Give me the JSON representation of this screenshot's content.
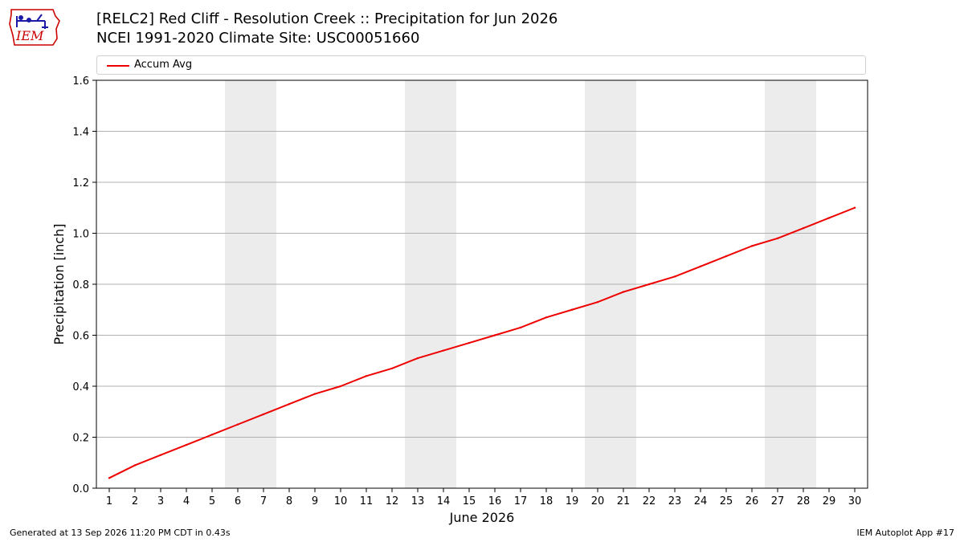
{
  "header": {
    "title_line1": "[RELC2] Red Cliff - Resolution Creek :: Precipitation for Jun 2026",
    "title_line2": "NCEI 1991-2020 Climate Site: USC00051660"
  },
  "logo": {
    "text": "IEM",
    "brand_color": "#cc0000",
    "icon_color": "#1a1aa6"
  },
  "footer": {
    "left": "Generated at 13 Sep 2026 11:20 PM CDT in 0.43s",
    "right": "IEM Autoplot App #17"
  },
  "chart_data": {
    "type": "line",
    "title": "[RELC2] Red Cliff - Resolution Creek :: Precipitation for Jun 2026",
    "subtitle": "NCEI 1991-2020 Climate Site: USC00051660",
    "xlabel": "June 2026",
    "ylabel": "Precipitation [inch]",
    "xlim": [
      0.5,
      30.5
    ],
    "ylim": [
      0,
      1.6
    ],
    "x": [
      1,
      2,
      3,
      4,
      5,
      6,
      7,
      8,
      9,
      10,
      11,
      12,
      13,
      14,
      15,
      16,
      17,
      18,
      19,
      20,
      21,
      22,
      23,
      24,
      25,
      26,
      27,
      28,
      29,
      30
    ],
    "x_ticks": [
      "1",
      "2",
      "3",
      "4",
      "5",
      "6",
      "7",
      "8",
      "9",
      "10",
      "11",
      "12",
      "13",
      "14",
      "15",
      "16",
      "17",
      "18",
      "19",
      "20",
      "21",
      "22",
      "23",
      "24",
      "25",
      "26",
      "27",
      "28",
      "29",
      "30"
    ],
    "y_ticks": [
      "0.0",
      "0.2",
      "0.4",
      "0.6",
      "0.8",
      "1.0",
      "1.2",
      "1.4",
      "1.6"
    ],
    "y_tick_values": [
      0,
      0.2,
      0.4,
      0.6,
      0.8,
      1.0,
      1.2,
      1.4,
      1.6
    ],
    "grid": "horizontal",
    "legend": "top",
    "weekend_bands": [
      [
        6,
        7
      ],
      [
        13,
        14
      ],
      [
        20,
        21
      ],
      [
        27,
        28
      ]
    ],
    "band_color": "#ececec",
    "series": [
      {
        "name": "Accum Avg",
        "color": "#ee0000",
        "values": [
          0.04,
          0.09,
          0.13,
          0.17,
          0.21,
          0.25,
          0.29,
          0.33,
          0.37,
          0.4,
          0.44,
          0.47,
          0.51,
          0.54,
          0.57,
          0.6,
          0.63,
          0.67,
          0.7,
          0.73,
          0.77,
          0.8,
          0.83,
          0.87,
          0.91,
          0.95,
          0.98,
          1.02,
          1.06,
          1.1
        ]
      }
    ]
  }
}
